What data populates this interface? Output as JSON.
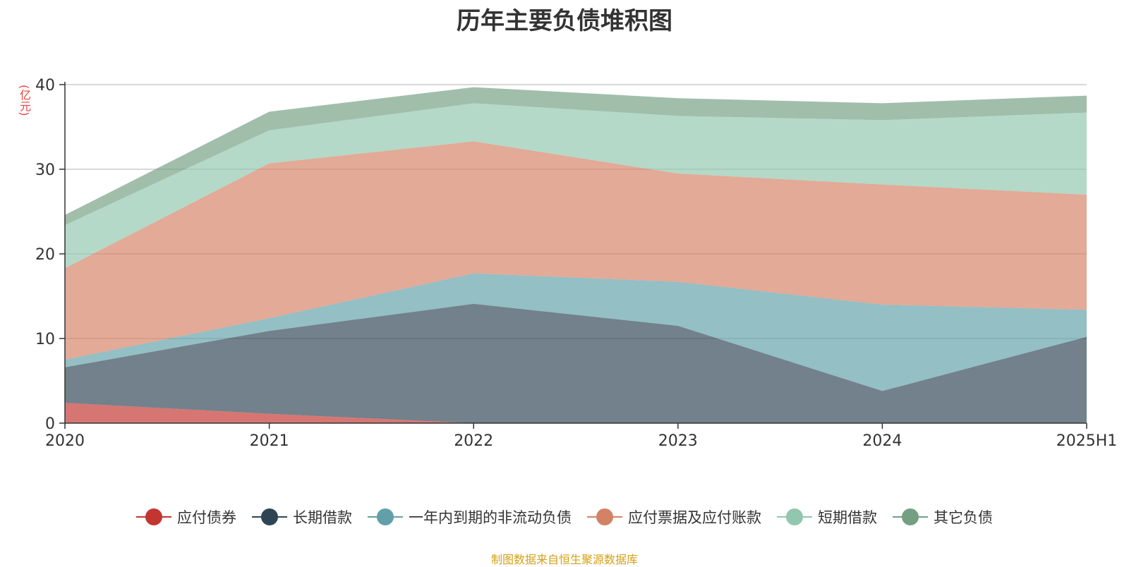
{
  "chart_data": {
    "type": "area",
    "stacked": true,
    "title": "历年主要负债堆积图",
    "ylabel": "(亿元)",
    "xlabel": "",
    "categories": [
      "2020",
      "2021",
      "2022",
      "2023",
      "2024",
      "2025H1"
    ],
    "ylim": [
      0,
      40
    ],
    "yticks": [
      "0",
      "10",
      "20",
      "30",
      "40"
    ],
    "grid": true,
    "legend_position": "bottom",
    "series": [
      {
        "name": "应付债券",
        "color": "#c23531",
        "values": [
          2.4,
          1.1,
          0,
          0,
          0,
          0
        ]
      },
      {
        "name": "长期借款",
        "color": "#2f4554",
        "values": [
          4.2,
          9.8,
          14.1,
          11.5,
          3.8,
          10.2
        ]
      },
      {
        "name": "一年内到期的非流动负债",
        "color": "#61a0a8",
        "values": [
          0.9,
          1.5,
          3.6,
          5.2,
          10.2,
          3.2
        ]
      },
      {
        "name": "应付票据及应付账款",
        "color": "#d48265",
        "values": [
          10.8,
          18.3,
          15.6,
          12.8,
          14.2,
          13.6
        ]
      },
      {
        "name": "短期借款",
        "color": "#91c7ae",
        "values": [
          5.1,
          3.9,
          4.5,
          6.8,
          7.6,
          9.7
        ]
      },
      {
        "name": "其它负债",
        "color": "#749f83",
        "values": [
          1.2,
          2.2,
          1.9,
          2.1,
          2.0,
          2.0
        ]
      }
    ]
  },
  "footer": {
    "source": "制图数据来自恒生聚源数据库"
  }
}
